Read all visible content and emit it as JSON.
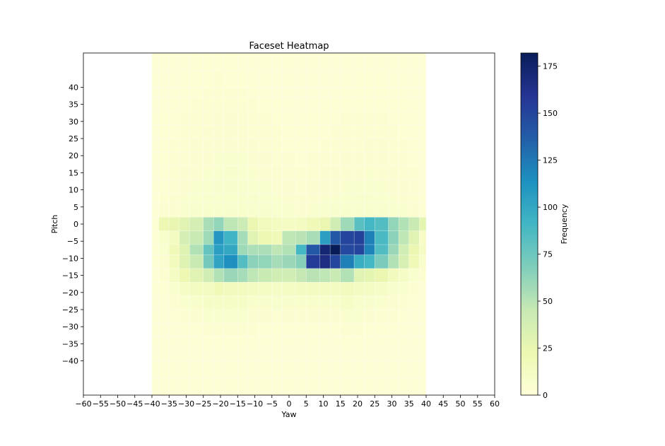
{
  "chart_data": {
    "type": "heatmap",
    "title": "Faceset Heatmap",
    "xlabel": "Yaw",
    "ylabel": "Pitch",
    "xlim": [
      -60,
      60
    ],
    "ylim": [
      -50,
      50
    ],
    "x_ticks": [
      -60,
      -55,
      -50,
      -45,
      -40,
      -35,
      -30,
      -25,
      -20,
      -15,
      -10,
      -5,
      0,
      5,
      10,
      15,
      20,
      25,
      30,
      35,
      40,
      45,
      50,
      55,
      60
    ],
    "y_ticks": [
      40,
      35,
      30,
      25,
      20,
      15,
      10,
      5,
      0,
      -5,
      -10,
      -15,
      -20,
      -25,
      -30,
      -35,
      -40
    ],
    "colormap": "YlGnBu",
    "colorbar": {
      "label": "Frequency",
      "vmin": 0,
      "vmax": 182,
      "ticks": [
        0,
        25,
        50,
        75,
        100,
        125,
        150,
        175
      ]
    },
    "x_bin_edges": [
      -40,
      -38,
      -35,
      -32,
      -29,
      -25,
      -22,
      -19,
      -15,
      -12,
      -9,
      -5,
      -2,
      2,
      5,
      9,
      12,
      15,
      19,
      22,
      25,
      29,
      32,
      35,
      38,
      40
    ],
    "y_bin_edges": [
      -50,
      -45,
      -40,
      -37,
      -33,
      -29,
      -25,
      -21,
      -17,
      -13,
      -9,
      -6,
      -2,
      2,
      6,
      9,
      13,
      17,
      21,
      25,
      29,
      33,
      37,
      40,
      45,
      50
    ],
    "z_rows_top_to_bottom": [
      [
        2,
        2,
        2,
        2,
        3,
        3,
        3,
        3,
        2,
        2,
        2,
        2,
        2,
        2,
        2,
        2,
        2,
        2,
        2,
        2,
        2,
        2,
        2,
        2,
        2
      ],
      [
        2,
        2,
        2,
        3,
        3,
        3,
        4,
        3,
        3,
        3,
        2,
        2,
        2,
        2,
        2,
        2,
        2,
        2,
        3,
        3,
        3,
        2,
        2,
        2,
        2
      ],
      [
        2,
        2,
        3,
        3,
        3,
        4,
        4,
        4,
        4,
        3,
        3,
        2,
        2,
        2,
        2,
        2,
        3,
        3,
        3,
        3,
        3,
        3,
        3,
        2,
        2
      ],
      [
        2,
        2,
        3,
        3,
        4,
        4,
        4,
        4,
        4,
        4,
        3,
        3,
        2,
        2,
        2,
        3,
        3,
        3,
        3,
        3,
        3,
        3,
        3,
        3,
        2
      ],
      [
        2,
        3,
        3,
        4,
        4,
        4,
        5,
        5,
        5,
        4,
        4,
        3,
        3,
        2,
        3,
        3,
        3,
        4,
        4,
        4,
        4,
        3,
        3,
        3,
        2
      ],
      [
        2,
        3,
        3,
        4,
        4,
        5,
        5,
        5,
        5,
        4,
        4,
        4,
        3,
        3,
        3,
        3,
        4,
        4,
        4,
        4,
        4,
        4,
        3,
        3,
        2
      ],
      [
        2,
        3,
        4,
        4,
        5,
        5,
        5,
        5,
        5,
        5,
        4,
        4,
        3,
        3,
        3,
        4,
        4,
        4,
        4,
        5,
        5,
        4,
        4,
        3,
        2
      ],
      [
        2,
        3,
        4,
        4,
        5,
        5,
        6,
        6,
        6,
        5,
        5,
        4,
        4,
        3,
        4,
        4,
        4,
        5,
        5,
        5,
        5,
        4,
        4,
        3,
        2
      ],
      [
        2,
        3,
        4,
        5,
        5,
        6,
        6,
        7,
        6,
        6,
        5,
        5,
        4,
        4,
        4,
        5,
        5,
        5,
        5,
        6,
        5,
        5,
        4,
        4,
        2
      ],
      [
        2,
        3,
        4,
        5,
        6,
        6,
        7,
        7,
        7,
        6,
        6,
        5,
        5,
        4,
        5,
        5,
        5,
        6,
        6,
        6,
        6,
        5,
        5,
        4,
        2
      ],
      [
        2,
        4,
        5,
        6,
        6,
        7,
        7,
        8,
        7,
        7,
        6,
        6,
        5,
        5,
        5,
        6,
        6,
        6,
        7,
        7,
        6,
        6,
        5,
        4,
        3
      ],
      [
        2,
        4,
        5,
        6,
        7,
        8,
        8,
        8,
        8,
        7,
        7,
        6,
        6,
        5,
        6,
        6,
        7,
        7,
        7,
        8,
        7,
        6,
        6,
        5,
        3
      ],
      [
        3,
        22,
        26,
        30,
        38,
        55,
        62,
        48,
        42,
        24,
        16,
        14,
        12,
        14,
        18,
        24,
        40,
        58,
        82,
        90,
        84,
        62,
        52,
        44,
        28
      ],
      [
        3,
        8,
        14,
        38,
        44,
        58,
        110,
        92,
        56,
        30,
        22,
        18,
        48,
        50,
        55,
        105,
        140,
        150,
        152,
        122,
        88,
        64,
        48,
        30,
        10
      ],
      [
        3,
        6,
        18,
        32,
        52,
        78,
        105,
        100,
        58,
        54,
        54,
        48,
        52,
        90,
        140,
        172,
        182,
        148,
        150,
        120,
        85,
        60,
        40,
        24,
        12
      ],
      [
        3,
        5,
        16,
        32,
        44,
        72,
        102,
        114,
        84,
        64,
        62,
        56,
        60,
        66,
        155,
        166,
        150,
        122,
        96,
        90,
        70,
        52,
        36,
        18,
        8
      ],
      [
        2,
        4,
        12,
        22,
        30,
        40,
        52,
        60,
        56,
        48,
        44,
        40,
        40,
        46,
        50,
        48,
        44,
        52,
        30,
        28,
        24,
        16,
        10,
        6,
        4
      ],
      [
        2,
        3,
        6,
        10,
        14,
        14,
        18,
        16,
        16,
        14,
        12,
        10,
        12,
        14,
        14,
        14,
        14,
        16,
        14,
        12,
        10,
        8,
        6,
        4,
        2
      ],
      [
        2,
        2,
        4,
        6,
        8,
        10,
        10,
        10,
        10,
        8,
        8,
        7,
        8,
        8,
        8,
        8,
        8,
        10,
        8,
        7,
        6,
        5,
        4,
        3,
        2
      ],
      [
        2,
        2,
        3,
        4,
        5,
        6,
        6,
        6,
        6,
        5,
        5,
        4,
        5,
        5,
        5,
        5,
        5,
        6,
        6,
        5,
        4,
        4,
        3,
        2,
        2
      ],
      [
        2,
        2,
        2,
        3,
        3,
        4,
        4,
        4,
        4,
        4,
        3,
        3,
        3,
        3,
        3,
        3,
        3,
        4,
        4,
        3,
        3,
        3,
        2,
        2,
        2
      ],
      [
        2,
        2,
        2,
        2,
        2,
        3,
        3,
        3,
        3,
        3,
        2,
        2,
        2,
        2,
        2,
        2,
        2,
        3,
        3,
        2,
        2,
        2,
        2,
        2,
        2
      ],
      [
        2,
        2,
        2,
        2,
        2,
        2,
        2,
        2,
        2,
        2,
        2,
        2,
        2,
        2,
        2,
        2,
        2,
        2,
        2,
        2,
        2,
        2,
        2,
        2,
        2
      ],
      [
        2,
        2,
        2,
        2,
        2,
        2,
        2,
        2,
        2,
        2,
        2,
        2,
        2,
        2,
        2,
        2,
        2,
        2,
        2,
        2,
        2,
        2,
        2,
        2,
        2
      ],
      [
        2,
        2,
        2,
        2,
        2,
        2,
        2,
        2,
        2,
        2,
        2,
        2,
        2,
        2,
        2,
        2,
        2,
        2,
        2,
        2,
        2,
        2,
        2,
        2,
        2
      ]
    ]
  }
}
